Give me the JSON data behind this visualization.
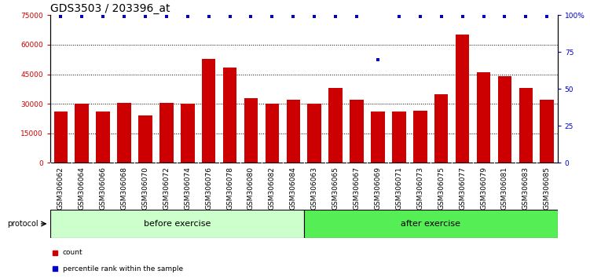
{
  "title": "GDS3503 / 203396_at",
  "categories": [
    "GSM306062",
    "GSM306064",
    "GSM306066",
    "GSM306068",
    "GSM306070",
    "GSM306072",
    "GSM306074",
    "GSM306076",
    "GSM306078",
    "GSM306080",
    "GSM306082",
    "GSM306084",
    "GSM306063",
    "GSM306065",
    "GSM306067",
    "GSM306069",
    "GSM306071",
    "GSM306073",
    "GSM306075",
    "GSM306077",
    "GSM306079",
    "GSM306081",
    "GSM306083",
    "GSM306085"
  ],
  "bar_values": [
    26000,
    30000,
    26000,
    30500,
    24000,
    30500,
    30000,
    53000,
    48500,
    33000,
    30000,
    32000,
    30000,
    38000,
    32000,
    26000,
    26000,
    26500,
    35000,
    65000,
    46000,
    44000,
    38000,
    32000
  ],
  "percentile_values": [
    99,
    99,
    99,
    99,
    99,
    99,
    99,
    99,
    99,
    99,
    99,
    99,
    99,
    99,
    99,
    70,
    99,
    99,
    99,
    99,
    99,
    99,
    99,
    99
  ],
  "bar_color": "#CC0000",
  "percentile_color": "#0000CC",
  "ylim_left": [
    0,
    75000
  ],
  "ylim_right": [
    0,
    100
  ],
  "yticks_left": [
    0,
    15000,
    30000,
    45000,
    60000,
    75000
  ],
  "yticks_right": [
    0,
    25,
    50,
    75,
    100
  ],
  "ytick_labels_right": [
    "0",
    "25",
    "50",
    "75",
    "100%"
  ],
  "before_exercise_count": 12,
  "after_exercise_count": 12,
  "before_label": "before exercise",
  "after_label": "after exercise",
  "before_color": "#CCFFCC",
  "after_color": "#55EE55",
  "protocol_label": "protocol",
  "legend_count_label": "count",
  "legend_percentile_label": "percentile rank within the sample",
  "plot_bg_color": "#FFFFFF",
  "xtick_bg_color": "#C8C8C8",
  "title_fontsize": 10,
  "tick_fontsize": 6.5,
  "label_fontsize": 8,
  "grid_yticks": [
    15000,
    30000,
    45000,
    60000
  ]
}
